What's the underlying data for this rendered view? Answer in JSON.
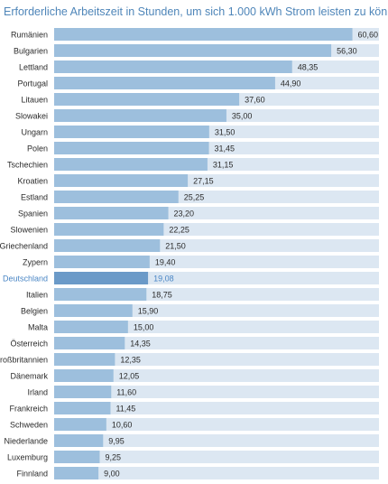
{
  "chart_data": {
    "type": "bar",
    "orientation": "horizontal",
    "title": "Erforderliche Arbeitszeit in Stunden, um sich 1.000 kWh Strom leisten zu können",
    "categories": [
      "Rumänien",
      "Bulgarien",
      "Lettland",
      "Portugal",
      "Litauen",
      "Slowakei",
      "Ungarn",
      "Polen",
      "Tschechien",
      "Kroatien",
      "Estland",
      "Spanien",
      "Slowenien",
      "Griechenland",
      "Zypern",
      "Deutschland",
      "Italien",
      "Belgien",
      "Malta",
      "Österreich",
      "Großbritannien",
      "Dänemark",
      "Irland",
      "Frankreich",
      "Schweden",
      "Niederlande",
      "Luxemburg",
      "Finnland"
    ],
    "values": [
      60.6,
      56.3,
      48.35,
      44.9,
      37.6,
      35.0,
      31.5,
      31.45,
      31.15,
      27.15,
      25.25,
      23.2,
      22.25,
      21.5,
      19.4,
      19.08,
      18.75,
      15.9,
      15.0,
      14.35,
      12.35,
      12.05,
      11.6,
      11.45,
      10.6,
      9.95,
      9.25,
      9.0
    ],
    "value_labels": [
      "60,60",
      "56,30",
      "48,35",
      "44,90",
      "37,60",
      "35,00",
      "31,50",
      "31,45",
      "31,15",
      "27,15",
      "25,25",
      "23,20",
      "22,25",
      "21,50",
      "19,40",
      "19,08",
      "18,75",
      "15,90",
      "15,00",
      "14,35",
      "12,35",
      "12,05",
      "11,60",
      "11,45",
      "10,60",
      "9,95",
      "9,25",
      "9,00"
    ],
    "highlight": "Deutschland",
    "xlim": [
      0,
      66
    ],
    "grid": false,
    "legend": "none",
    "colors": {
      "bar": "#9dbfdd",
      "bar_highlight": "#6b9ac8",
      "track": "#dce7f2",
      "label": "#2b2b2b",
      "label_highlight": "#4a86c5",
      "title": "#4f86b9"
    }
  }
}
